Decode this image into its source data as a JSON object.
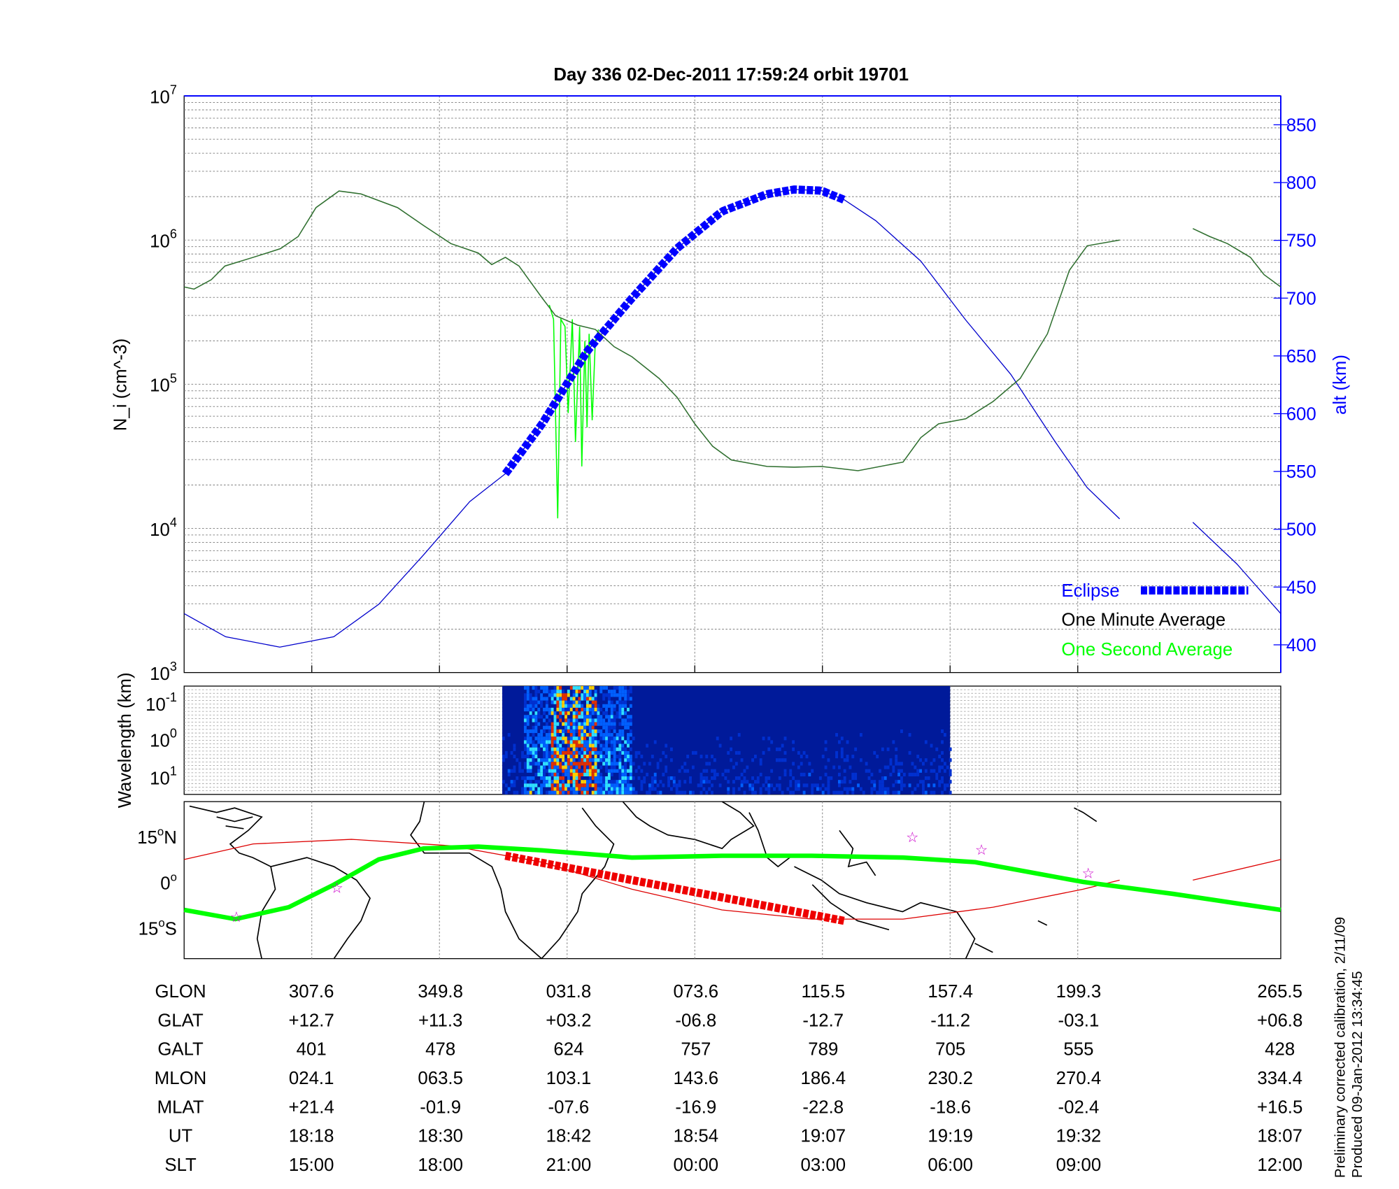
{
  "title": "Day 336  02-Dec-2011 17:59:24   orbit 19701",
  "colors": {
    "eclipse": "#0000ff",
    "minute": "#000000",
    "second": "#00ff00",
    "alt": "#0000cc",
    "orbit_red": "#dd0000",
    "star": "#cc00cc"
  },
  "chart_data": [
    {
      "type": "line",
      "title": "Day 336  02-Dec-2011 17:59:24   orbit 19701",
      "xlabel": "",
      "x_units": "minutes since 18:06 UT",
      "xlim": [
        0,
        104.8
      ],
      "x_gridlines": [
        12.2,
        24.4,
        36.6,
        48.8,
        61.0,
        73.2,
        85.4
      ],
      "ylabel": "N_i (cm^-3)",
      "ylabel_main": "N",
      "ylabel_sub": "i",
      "ylabel_unit": "(cm",
      "ylabel_exp": "-3",
      "ylabel_close": ")",
      "yscale": "log",
      "ylim": [
        1000,
        10000000
      ],
      "y_ticks": [
        {
          "base": "10",
          "exp": "3",
          "v": 3
        },
        {
          "base": "10",
          "exp": "4",
          "v": 4
        },
        {
          "base": "10",
          "exp": "5",
          "v": 5
        },
        {
          "base": "10",
          "exp": "6",
          "v": 6
        },
        {
          "base": "10",
          "exp": "7",
          "v": 7
        }
      ],
      "y2label": "alt (km)",
      "y2lim": [
        376,
        875
      ],
      "y2_ticks": [
        "400",
        "450",
        "500",
        "550",
        "600",
        "650",
        "700",
        "750",
        "800",
        "850"
      ],
      "legend": {
        "position": "bottom-right",
        "entries": [
          "Eclipse",
          "One Minute Average",
          "One Second Average"
        ]
      },
      "series": [
        {
          "name": "One Minute Average",
          "log10_values": [
            [
              0,
              5.675
            ],
            [
              0.95,
              5.66
            ],
            [
              2.6,
              5.725
            ],
            [
              3.9,
              5.82
            ],
            [
              6.6,
              5.88
            ],
            [
              9.2,
              5.94
            ],
            [
              10.9,
              6.025
            ],
            [
              12.6,
              6.225
            ],
            [
              14.8,
              6.34
            ],
            [
              16.9,
              6.32
            ],
            [
              20.4,
              6.225
            ],
            [
              22.9,
              6.1
            ],
            [
              25.5,
              5.975
            ],
            [
              28.1,
              5.91
            ],
            [
              29.4,
              5.83
            ],
            [
              30.7,
              5.88
            ],
            [
              32.0,
              5.82
            ],
            [
              34.2,
              5.6
            ],
            [
              35.5,
              5.475
            ],
            [
              37.6,
              5.41
            ],
            [
              39.3,
              5.38
            ],
            [
              41.1,
              5.26
            ],
            [
              42.8,
              5.19
            ],
            [
              45.4,
              5.04
            ],
            [
              47.1,
              4.91
            ],
            [
              48.8,
              4.725
            ],
            [
              50.5,
              4.57
            ],
            [
              52.3,
              4.475
            ],
            [
              55.7,
              4.43
            ],
            [
              58.3,
              4.425
            ],
            [
              60.9,
              4.43
            ],
            [
              64.4,
              4.4
            ],
            [
              68.7,
              4.46
            ],
            [
              70.4,
              4.63
            ],
            [
              72.1,
              4.725
            ],
            [
              74.7,
              4.76
            ],
            [
              77.3,
              4.88
            ],
            [
              79.9,
              5.04
            ],
            [
              82.5,
              5.35
            ],
            [
              84.6,
              5.79
            ],
            [
              86.3,
              5.96
            ],
            [
              89.4,
              6.0
            ],
            null,
            [
              96.4,
              6.08
            ],
            [
              98.0,
              6.025
            ],
            [
              99.7,
              5.975
            ],
            [
              101.9,
              5.88
            ],
            [
              103.2,
              5.76
            ],
            [
              104.8,
              5.675
            ]
          ]
        },
        {
          "name": "One Second Average",
          "log10_values": [
            [
              34.9,
              5.55
            ],
            [
              35.3,
              5.45
            ],
            [
              35.7,
              4.07
            ],
            [
              36.0,
              5.45
            ],
            [
              36.4,
              5.4
            ],
            [
              36.7,
              4.8
            ],
            [
              37.1,
              5.45
            ],
            [
              37.4,
              4.6
            ],
            [
              37.8,
              5.4
            ],
            [
              38.0,
              4.43
            ],
            [
              38.3,
              5.3
            ],
            [
              38.5,
              4.7
            ],
            [
              38.7,
              5.35
            ],
            [
              39.0,
              4.75
            ],
            [
              39.3,
              5.3
            ],
            [
              39.6,
              5.38
            ]
          ]
        },
        {
          "name": "Altitude (km)",
          "axis": "right",
          "values": [
            [
              0,
              427
            ],
            [
              3.97,
              407
            ],
            [
              9.14,
              398
            ],
            [
              14.3,
              407
            ],
            [
              18.6,
              435
            ],
            [
              22.9,
              478
            ],
            [
              27.3,
              524
            ],
            [
              30.7,
              548
            ],
            [
              34.2,
              591
            ],
            [
              38.5,
              654
            ],
            [
              42.8,
              700
            ],
            [
              47.1,
              743
            ],
            [
              51.4,
              775
            ],
            [
              55.7,
              790
            ],
            [
              58.3,
              794
            ],
            [
              60.9,
              793
            ],
            [
              63.1,
              785
            ],
            [
              66.1,
              767
            ],
            [
              70.4,
              732
            ],
            [
              74.7,
              681
            ],
            [
              79.0,
              634
            ],
            [
              83.3,
              575
            ],
            [
              86.3,
              536
            ],
            [
              89.4,
              509
            ],
            null,
            [
              96.4,
              506
            ],
            [
              100.6,
              470
            ],
            [
              104.8,
              427
            ]
          ]
        },
        {
          "name": "Eclipse",
          "axis": "right",
          "x_range": [
            30.7,
            63.1
          ]
        }
      ]
    },
    {
      "type": "heatmap",
      "ylabel": "Wavelength (km)",
      "y_ticks": [
        {
          "base": "10",
          "exp": "-1"
        },
        {
          "base": "10",
          "exp": "0"
        },
        {
          "base": "10",
          "exp": "1"
        }
      ],
      "x_range": [
        30.4,
        73.2
      ]
    },
    {
      "type": "line",
      "y_ticks": [
        {
          "deg": "15",
          "hemi": "N",
          "v": 15
        },
        {
          "deg": "0",
          "hemi": "",
          "v": 0
        },
        {
          "deg": "15",
          "hemi": "S",
          "v": -15
        }
      ],
      "ylim": [
        -25.2,
        26.4
      ],
      "series": [
        {
          "name": "Magnetic equator",
          "lat": [
            [
              0,
              -9.2
            ],
            [
              4.9,
              -12.2
            ],
            [
              10.0,
              -8.3
            ],
            [
              14.3,
              -0.9
            ],
            [
              18.6,
              7.4
            ],
            [
              22.9,
              11
            ],
            [
              28.1,
              11.6
            ],
            [
              34.2,
              10.4
            ],
            [
              42.8,
              8
            ],
            [
              51.4,
              8.6
            ],
            [
              60.0,
              8.6
            ],
            [
              68.7,
              8
            ],
            [
              75.6,
              6.5
            ],
            [
              81.6,
              2.7
            ],
            [
              85.9,
              0
            ],
            [
              94.5,
              -3.9
            ],
            [
              104.8,
              -9.2
            ]
          ]
        },
        {
          "name": "Orbit track",
          "lat": [
            [
              0,
              7.4
            ],
            [
              6.6,
              12.5
            ],
            [
              16.0,
              14
            ],
            [
              25.5,
              11.9
            ],
            [
              34.2,
              6.5
            ],
            [
              42.8,
              -2.4
            ],
            [
              51.4,
              -9.2
            ],
            [
              60.0,
              -12.2
            ],
            [
              68.7,
              -12.2
            ],
            [
              77.3,
              -8.3
            ],
            [
              85.9,
              -2.4
            ],
            [
              89.4,
              0.6
            ],
            null,
            [
              96.4,
              0.6
            ],
            [
              104.8,
              7.4
            ]
          ]
        },
        {
          "name": "Eclipse track",
          "lat": [
            [
              30.7,
              8.6
            ],
            [
              63.1,
              -12.8
            ]
          ]
        },
        {
          "name": "Stars",
          "lat": [
            [
              5.0,
              -11.6
            ],
            [
              14.6,
              -2.1
            ],
            [
              69.6,
              14.6
            ],
            [
              76.2,
              10.4
            ],
            [
              86.4,
              2.7
            ]
          ]
        }
      ]
    }
  ],
  "table": {
    "rows": [
      {
        "label": "GLON",
        "values": [
          "307.6",
          "349.8",
          "031.8",
          "073.6",
          "115.5",
          "157.4",
          "199.3",
          "265.5"
        ]
      },
      {
        "label": "GLAT",
        "values": [
          "+12.7",
          "+11.3",
          "+03.2",
          "-06.8",
          "-12.7",
          "-11.2",
          "-03.1",
          "+06.8"
        ]
      },
      {
        "label": "GALT",
        "values": [
          "401",
          "478",
          "624",
          "757",
          "789",
          "705",
          "555",
          "428"
        ]
      },
      {
        "label": "MLON",
        "values": [
          "024.1",
          "063.5",
          "103.1",
          "143.6",
          "186.4",
          "230.2",
          "270.4",
          "334.4"
        ]
      },
      {
        "label": "MLAT",
        "values": [
          "+21.4",
          "-01.9",
          "-07.6",
          "-16.9",
          "-22.8",
          "-18.6",
          "-02.4",
          "+16.5"
        ]
      },
      {
        "label": "UT",
        "values": [
          "18:18",
          "18:30",
          "18:42",
          "18:54",
          "19:07",
          "19:19",
          "19:32",
          "18:07"
        ]
      },
      {
        "label": "SLT",
        "values": [
          "15:00",
          "18:00",
          "21:00",
          "00:00",
          "03:00",
          "06:00",
          "09:00",
          "12:00"
        ]
      }
    ]
  },
  "footer": {
    "line1": "Preliminary corrected calibration, 2/11/09",
    "line2": "Produced 09-Jan-2012 13:34:45"
  }
}
